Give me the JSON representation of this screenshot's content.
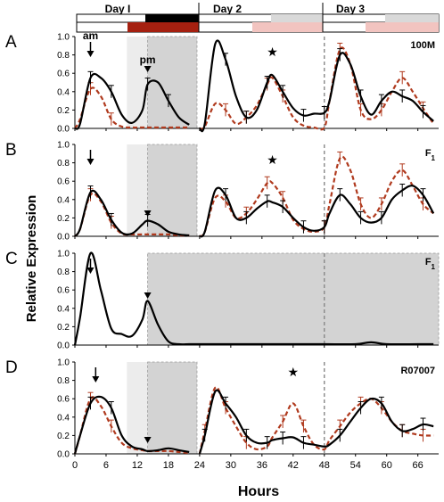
{
  "figure": {
    "ylabel": "Relative Expression",
    "xlabel": "Hours",
    "x_ticks": [
      0,
      6,
      12,
      18,
      24,
      30,
      36,
      42,
      48,
      54,
      60,
      66
    ],
    "y_ticks": [
      "0.0",
      "0.2",
      "0.4",
      "0.6",
      "0.8",
      "1.0"
    ],
    "day_labels": [
      "Day I",
      "Day 2",
      "Day 3"
    ],
    "colors": {
      "black_series": "#000000",
      "red_series": "#b03a1e",
      "shade_dark": "#d3d3d3",
      "shade_light": "#ececec",
      "bar_black": "#000000",
      "bar_red": "#a52010",
      "bar_grey": "#d9d9d9",
      "bar_pink": "#f2c4c0"
    }
  },
  "chart_data": [
    {
      "type": "line",
      "panel": "A",
      "genotype": "100M",
      "annotations": {
        "am": "am",
        "pm": "pm",
        "arrow_x": 3,
        "pm_triangle_x": 14,
        "star_x": 38
      },
      "shade": {
        "dark": [
          [
            14,
            23.5
          ]
        ],
        "light": [
          [
            10,
            14
          ]
        ]
      },
      "divider_x": 48,
      "ylim": [
        0,
        1.0
      ],
      "xlim": [
        0,
        70
      ],
      "series": [
        {
          "x": [
            0,
            1,
            3,
            5,
            7,
            9,
            11,
            13,
            14,
            16,
            18,
            20,
            22,
            24,
            25,
            27,
            29,
            31,
            33,
            35,
            37,
            38,
            40,
            42,
            44,
            46,
            48,
            49,
            51,
            53,
            55,
            57,
            59,
            61,
            63,
            65,
            67,
            69
          ],
          "y": [
            0,
            0.05,
            0.55,
            0.55,
            0.4,
            0.15,
            0.06,
            0.2,
            0.48,
            0.5,
            0.3,
            0.12,
            0.04,
            0,
            0.05,
            0.92,
            0.75,
            0.35,
            0.12,
            0.2,
            0.5,
            0.58,
            0.4,
            0.22,
            0.14,
            0.16,
            0.17,
            0.3,
            0.8,
            0.7,
            0.35,
            0.15,
            0.3,
            0.4,
            0.35,
            0.3,
            0.18,
            0.08
          ]
        },
        {
          "x": [
            0,
            1,
            3,
            5,
            7,
            9,
            11,
            13,
            14,
            16,
            18,
            20,
            22,
            24,
            25,
            27,
            29,
            31,
            33,
            35,
            37,
            38,
            40,
            42,
            44,
            46,
            48,
            49,
            51,
            53,
            55,
            57,
            59,
            61,
            63,
            65,
            67,
            69
          ],
          "y": [
            0,
            0.1,
            0.43,
            0.35,
            0.1,
            0.02,
            0.01,
            0.01,
            0.01,
            0.01,
            0.01,
            0.01,
            0.01,
            0,
            0.02,
            0.27,
            0.2,
            0.05,
            0.12,
            0.25,
            0.48,
            0.55,
            0.35,
            0.12,
            0.03,
            0.01,
            0.01,
            0.3,
            0.86,
            0.7,
            0.2,
            0.1,
            0.2,
            0.4,
            0.55,
            0.4,
            0.22,
            0.05
          ]
        }
      ]
    },
    {
      "type": "line",
      "panel": "B",
      "genotype": "F1",
      "annotations": {
        "arrow_x": 3,
        "pm_triangle_x": 14,
        "star_x": 38
      },
      "shade": {
        "dark": [
          [
            14,
            23.5
          ]
        ],
        "light": [
          [
            10,
            14
          ]
        ]
      },
      "divider_x": 48,
      "ylim": [
        0,
        1.0
      ],
      "xlim": [
        0,
        70
      ],
      "series": [
        {
          "x": [
            0,
            1,
            3,
            5,
            7,
            9,
            11,
            13,
            14,
            16,
            18,
            20,
            22,
            24,
            25,
            27,
            29,
            31,
            33,
            35,
            37,
            38,
            40,
            42,
            44,
            46,
            48,
            49,
            51,
            53,
            55,
            57,
            59,
            61,
            63,
            65,
            67,
            69
          ],
          "y": [
            0,
            0.08,
            0.48,
            0.4,
            0.18,
            0.04,
            0.03,
            0.13,
            0.17,
            0.13,
            0.05,
            0.02,
            0.01,
            0,
            0.05,
            0.5,
            0.45,
            0.2,
            0.2,
            0.3,
            0.38,
            0.37,
            0.32,
            0.2,
            0.1,
            0.06,
            0.1,
            0.25,
            0.45,
            0.35,
            0.2,
            0.15,
            0.2,
            0.4,
            0.5,
            0.55,
            0.45,
            0.25
          ]
        },
        {
          "x": [
            0,
            1,
            3,
            5,
            7,
            9,
            11,
            13,
            14,
            16,
            18,
            20,
            22,
            24,
            25,
            27,
            29,
            31,
            33,
            35,
            37,
            38,
            40,
            42,
            44,
            46,
            48,
            49,
            51,
            53,
            55,
            57,
            59,
            61,
            63,
            65,
            67,
            69
          ],
          "y": [
            0,
            0.08,
            0.45,
            0.38,
            0.15,
            0.03,
            0.02,
            0.02,
            0.02,
            0.02,
            0.02,
            0.01,
            0.01,
            0,
            0.05,
            0.42,
            0.38,
            0.2,
            0.25,
            0.4,
            0.58,
            0.58,
            0.42,
            0.18,
            0.08,
            0.05,
            0.1,
            0.35,
            0.85,
            0.72,
            0.35,
            0.2,
            0.35,
            0.6,
            0.72,
            0.55,
            0.35,
            0.25
          ]
        }
      ]
    },
    {
      "type": "line",
      "panel": "C",
      "genotype": "F1",
      "annotations": {
        "arrow_x": 3,
        "pm_triangle_x": 14
      },
      "shade": {
        "dark": [
          [
            14,
            70
          ]
        ],
        "light": []
      },
      "divider_x": 48,
      "ylim": [
        0,
        1.0
      ],
      "xlim": [
        0,
        70
      ],
      "series": [
        {
          "x": [
            0,
            1,
            3,
            5,
            7,
            9,
            11,
            13,
            14,
            16,
            18,
            20,
            22,
            24,
            30,
            36,
            42,
            48,
            54,
            57,
            60,
            66,
            69
          ],
          "y": [
            0,
            0.3,
            1.0,
            0.6,
            0.18,
            0.12,
            0.1,
            0.28,
            0.48,
            0.22,
            0.04,
            0.01,
            0.01,
            0.01,
            0.01,
            0.01,
            0.01,
            0.01,
            0.01,
            0.03,
            0.01,
            0.01,
            0.01
          ]
        }
      ]
    },
    {
      "type": "line",
      "panel": "D",
      "genotype": "R07007",
      "annotations": {
        "arrow_x": 4,
        "pm_triangle_x": 14,
        "star_x": 42
      },
      "shade": {
        "dark": [
          [
            14,
            23.5
          ]
        ],
        "light": [
          [
            10,
            14
          ]
        ]
      },
      "divider_x": 48,
      "ylim": [
        0,
        1.0
      ],
      "xlim": [
        0,
        70
      ],
      "series": [
        {
          "x": [
            0,
            1,
            3,
            5,
            7,
            9,
            11,
            13,
            14,
            16,
            18,
            20,
            22,
            24,
            25,
            27,
            29,
            31,
            33,
            35,
            37,
            38,
            40,
            42,
            44,
            46,
            48,
            49,
            51,
            53,
            55,
            57,
            59,
            61,
            63,
            65,
            67,
            69
          ],
          "y": [
            0,
            0.2,
            0.55,
            0.62,
            0.5,
            0.2,
            0.08,
            0.05,
            0.03,
            0.04,
            0.06,
            0.04,
            0.02,
            0,
            0.2,
            0.68,
            0.55,
            0.4,
            0.2,
            0.12,
            0.12,
            0.15,
            0.17,
            0.18,
            0.12,
            0.1,
            0.08,
            0.1,
            0.2,
            0.35,
            0.5,
            0.6,
            0.55,
            0.35,
            0.25,
            0.27,
            0.32,
            0.3
          ]
        },
        {
          "x": [
            0,
            1,
            3,
            5,
            7,
            9,
            11,
            13,
            14,
            16,
            18,
            20,
            22,
            24,
            25,
            27,
            29,
            31,
            33,
            35,
            37,
            38,
            40,
            42,
            44,
            46,
            48,
            49,
            51,
            53,
            55,
            57,
            59,
            61,
            63,
            65,
            67,
            69
          ],
          "y": [
            0,
            0.2,
            0.6,
            0.52,
            0.3,
            0.12,
            0.06,
            0.04,
            0.03,
            0.03,
            0.03,
            0.02,
            0.01,
            0,
            0.25,
            0.72,
            0.5,
            0.3,
            0.12,
            0.05,
            0.08,
            0.18,
            0.35,
            0.55,
            0.3,
            0.1,
            0.05,
            0.15,
            0.3,
            0.45,
            0.55,
            0.6,
            0.5,
            0.35,
            0.25,
            0.22,
            0.2,
            0.2
          ]
        }
      ]
    }
  ]
}
